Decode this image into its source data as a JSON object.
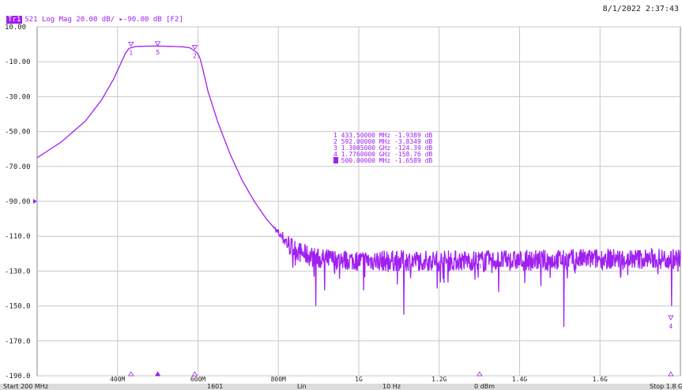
{
  "timestamp": "8/1/2022 2:37:43",
  "trace_header": {
    "badge": "Tr1",
    "text": "S21 Log Mag 20.00 dB/ ▸-90.00 dB [F2]"
  },
  "footer": {
    "start": "Start 200 MHz",
    "points": "1601",
    "sweep": "Lin",
    "ifbw": "10 Hz",
    "power": "0 dBm",
    "stop": "Stop 1.8 GHz"
  },
  "colors": {
    "trace": "#a020f0",
    "grid": "#c8c8c8",
    "axis": "#888888"
  },
  "chart_data": {
    "type": "line",
    "xlim": [
      200,
      1800
    ],
    "ylim": [
      -190,
      10
    ],
    "yticks": [
      10,
      -10,
      -30,
      -50,
      -70,
      -90,
      -110,
      -130,
      -150,
      -170,
      -190
    ],
    "ytick_labels": [
      "10.00",
      "-10.00",
      "-30.00",
      "-50.00",
      "-70.00",
      "-90.00",
      "-110.0",
      "-130.0",
      "-150.0",
      "-170.0",
      "-190.0"
    ],
    "reference_level": -90,
    "xticks": [
      400,
      600,
      800,
      1000,
      1200,
      1400,
      1600
    ],
    "xtick_labels": [
      "400M",
      "600M",
      "800M",
      "1G",
      "1.2G",
      "1.4G",
      "1.6G"
    ],
    "trace_envelope": {
      "x": [
        200,
        260,
        320,
        360,
        390,
        410,
        420,
        428,
        434,
        445,
        470,
        500,
        530,
        560,
        580,
        592,
        600,
        605,
        612,
        625,
        650,
        680,
        710,
        740,
        770,
        800,
        815,
        830,
        860,
        900,
        1000,
        1200,
        1400,
        1600,
        1800
      ],
      "y": [
        -65,
        -56,
        -44,
        -32,
        -20,
        -10,
        -5,
        -2.5,
        -1.9,
        -1.3,
        -1.1,
        -1.0,
        -1.2,
        -1.4,
        -2.0,
        -3.8,
        -5.5,
        -8,
        -14,
        -27,
        -45,
        -63,
        -78,
        -90,
        -100,
        -108,
        -112,
        -116,
        -120,
        -123,
        -124,
        -124,
        -124,
        -123,
        -123
      ]
    },
    "noise_floor": {
      "x_start": 815,
      "mean_db": -123,
      "spread_db": 6
    },
    "noise_spikes": [
      {
        "x": 893,
        "y": -150
      },
      {
        "x": 915,
        "y": -141
      },
      {
        "x": 1012,
        "y": -141
      },
      {
        "x": 1112,
        "y": -155
      },
      {
        "x": 1195,
        "y": -140
      },
      {
        "x": 1348,
        "y": -142
      },
      {
        "x": 1510,
        "y": -162
      },
      {
        "x": 1778,
        "y": -150
      }
    ],
    "markers": [
      {
        "id": "1",
        "x": 433.5,
        "y": -1.9389,
        "readout": "1  433.50000 MHz  -1.9389 dB"
      },
      {
        "id": "2",
        "x": 592,
        "y": -3.8349,
        "readout": "2  592.00000 MHz  -3.8349 dB"
      },
      {
        "id": "3",
        "x": 1300.5,
        "y": -124.39,
        "readout": "3  1.3005000 GHz  -124.39 dB"
      },
      {
        "id": "4",
        "x": 1776,
        "y": -158.76,
        "readout": "4  1.7760000 GHz  -158.76 dB"
      },
      {
        "id": "5",
        "x": 500,
        "y": -1.6589,
        "readout": "5  500.00000 MHz  -1.6589 dB",
        "active": true
      }
    ]
  }
}
